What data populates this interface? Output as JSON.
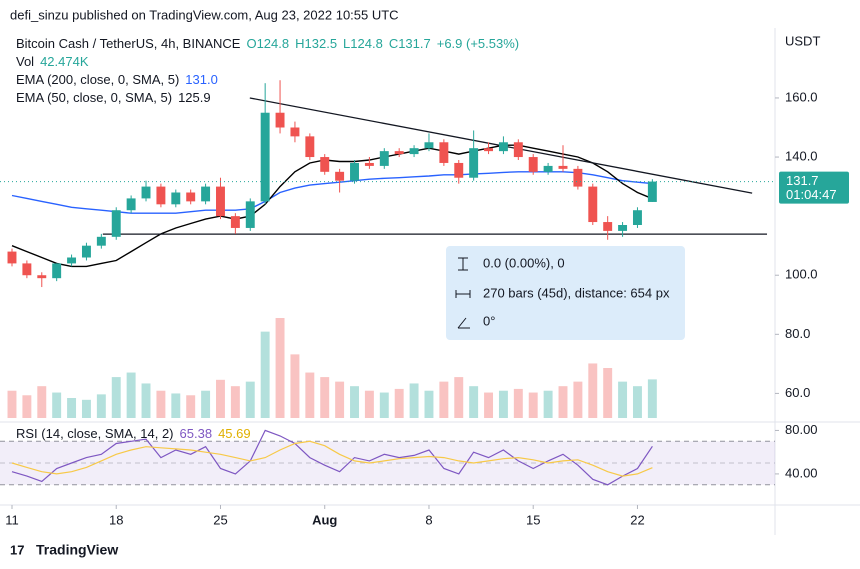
{
  "header": "defi_sinzu published on TradingView.com, Aug 23, 2022 10:55 UTC",
  "footer": "TradingView",
  "chart_data": {
    "type": "candlestick",
    "title": "Bitcoin Cash / TetherUS, 4h, BINANCE",
    "ohlc_text": [
      "O124.8",
      "H132.5",
      "L124.8",
      "C131.7",
      "+6.9 (+5.53%)"
    ],
    "currency": "USDT",
    "countdown": "01:04:47",
    "up_color": "#26a69a",
    "down_color": "#ef5350",
    "x": [
      0,
      1,
      2,
      3,
      4,
      5,
      6,
      7,
      8,
      9,
      10,
      11,
      12,
      13,
      14,
      15,
      16,
      17,
      18,
      19,
      20,
      21,
      22,
      23,
      24,
      25,
      26,
      27,
      28,
      29,
      30,
      31,
      32,
      33,
      34,
      35,
      36,
      37,
      38,
      39,
      40,
      41,
      42,
      43
    ],
    "xlim": [
      -0.1,
      50.9
    ],
    "xticks": [
      {
        "value": 0,
        "label": "11"
      },
      {
        "value": 7,
        "label": "18"
      },
      {
        "value": 14,
        "label": "25"
      },
      {
        "value": 21,
        "label": "Aug"
      },
      {
        "value": 28,
        "label": "8"
      },
      {
        "value": 35,
        "label": "15"
      },
      {
        "value": 42,
        "label": "22"
      }
    ],
    "ylim": [
      51,
      183
    ],
    "yticks": [
      {
        "value": 60,
        "label": "60.0"
      },
      {
        "value": 80,
        "label": "80.0"
      },
      {
        "value": 100,
        "label": "100.0"
      },
      {
        "value": 140,
        "label": "140.0"
      },
      {
        "value": 160,
        "label": "160.0"
      }
    ],
    "open": [
      108,
      104,
      100,
      99,
      104,
      106,
      110,
      113,
      122,
      126,
      130,
      124,
      128,
      125,
      130,
      120,
      116,
      125,
      155,
      150,
      147,
      140,
      135,
      132,
      138,
      137,
      142,
      141,
      143,
      145,
      138,
      133,
      143,
      142,
      145,
      140,
      135,
      137,
      136,
      130,
      118,
      115,
      117,
      124.8
    ],
    "high": [
      109,
      105,
      101,
      104,
      107,
      111,
      114,
      123,
      127,
      132,
      131,
      129,
      129,
      131,
      133,
      121,
      126,
      165,
      166,
      152,
      148,
      141,
      136,
      139,
      140,
      143,
      143,
      144,
      148,
      146,
      139,
      149,
      145,
      147,
      146,
      141,
      138,
      144,
      137,
      131,
      120,
      118,
      123,
      132.5
    ],
    "low": [
      103,
      99,
      96,
      98,
      103,
      105,
      109,
      112,
      121,
      125,
      123,
      123,
      124,
      124,
      119,
      114,
      115,
      124,
      148,
      145,
      139,
      134,
      128,
      131,
      136,
      136,
      140,
      140,
      142,
      137,
      131,
      132,
      141,
      141,
      139,
      134,
      134,
      135,
      129,
      117,
      112,
      113,
      116,
      124.8
    ],
    "close": [
      104,
      100,
      99,
      104,
      106,
      110,
      113,
      122,
      126,
      130,
      124,
      128,
      125,
      130,
      120,
      116,
      125,
      155,
      150,
      147,
      140,
      135,
      132,
      138,
      137,
      142,
      141,
      143,
      145,
      138,
      133,
      143,
      142,
      145,
      140,
      135,
      137,
      136,
      130,
      118,
      115,
      117,
      122,
      131.7
    ],
    "volume": {
      "name": "Vol",
      "value_labels": "42.474K",
      "values": [
        30000,
        25000,
        35000,
        28000,
        22000,
        20000,
        26000,
        45000,
        50000,
        38000,
        30000,
        27000,
        25000,
        30000,
        42000,
        35000,
        40000,
        95000,
        110000,
        70000,
        50000,
        45000,
        40000,
        35000,
        30000,
        28000,
        32000,
        38000,
        30000,
        40000,
        45000,
        35000,
        28000,
        30000,
        32000,
        28000,
        30000,
        35000,
        40000,
        60000,
        55000,
        40000,
        35000,
        42474
      ]
    },
    "ema": [
      {
        "name": "EMA (200, close, 0, SMA, 5)",
        "color": "#2962ff",
        "last_label": "131.0",
        "values": [
          127,
          126,
          125,
          124,
          123,
          122.5,
          122,
          121.5,
          121,
          121,
          121,
          121,
          121.5,
          122,
          122,
          122,
          122.5,
          125,
          128,
          129.5,
          130.5,
          131,
          131.5,
          132,
          132.5,
          132.8,
          133,
          133.3,
          133.6,
          134,
          134,
          134.3,
          134.5,
          134.8,
          135,
          135,
          135,
          135,
          134.7,
          134,
          133,
          132,
          131.5,
          131
        ]
      },
      {
        "name": "EMA (50, close, 0, SMA, 5)",
        "color": "#000000",
        "values": [
          110,
          108,
          106,
          104,
          103,
          103,
          104,
          105,
          108,
          111,
          114,
          116,
          117.5,
          119,
          120,
          119,
          120,
          124,
          130,
          135,
          138,
          139,
          138.5,
          138.5,
          139,
          140,
          141,
          142,
          143,
          142,
          141,
          142,
          143,
          144,
          144,
          143,
          142,
          141,
          140,
          138,
          135,
          131,
          128,
          125.9
        ]
      }
    ],
    "drawings": [
      {
        "type": "trend",
        "x": [
          15.97,
          49.7
        ],
        "y": [
          160,
          127.8
        ]
      },
      {
        "type": "horizontal",
        "x": [
          6.1,
          50.7
        ],
        "y": [
          113.9,
          113.9
        ]
      }
    ],
    "measure": {
      "price": "0.0 (0.00%), 0",
      "bars": "270 bars (45d), distance: 654 px",
      "angle": "0°"
    },
    "rsi": {
      "name": "RSI (14, close, SMA, 14, 2)",
      "color": "#7e57c2",
      "sma_color": "#f7c948",
      "ylim": [
        16,
        85
      ],
      "yticks": [
        {
          "value": 40,
          "label": "40.00"
        },
        {
          "value": 80,
          "label": "80.00"
        }
      ],
      "bands": [
        30,
        50,
        70
      ],
      "values": [
        42,
        38,
        33,
        45,
        50,
        55,
        58,
        68,
        70,
        72,
        55,
        62,
        58,
        65,
        45,
        40,
        52,
        80,
        75,
        68,
        55,
        48,
        42,
        55,
        52,
        58,
        55,
        57,
        62,
        45,
        40,
        60,
        55,
        62,
        52,
        45,
        52,
        58,
        48,
        35,
        30,
        38,
        45,
        65.38
      ],
      "sma": [
        50,
        46,
        42,
        40,
        42,
        46,
        52,
        58,
        62,
        65,
        64,
        63,
        62,
        60,
        58,
        55,
        52,
        55,
        62,
        68,
        70,
        66,
        58,
        52,
        50,
        52,
        54,
        55,
        56,
        55,
        52,
        50,
        52,
        54,
        55,
        53,
        50,
        52,
        53,
        48,
        42,
        38,
        40,
        45.69
      ]
    }
  }
}
